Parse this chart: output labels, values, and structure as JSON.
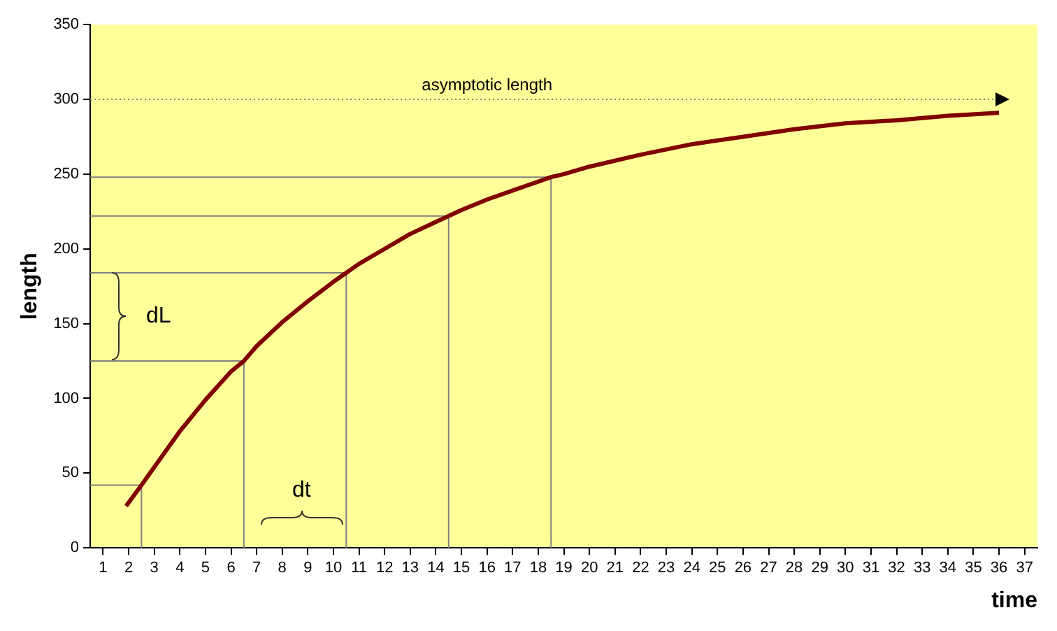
{
  "chart_data": {
    "type": "line",
    "xlabel": "time",
    "ylabel": "length",
    "xlim": [
      0.5,
      37.5
    ],
    "xticks": [
      1,
      2,
      3,
      4,
      5,
      6,
      7,
      8,
      9,
      10,
      11,
      12,
      13,
      14,
      15,
      16,
      17,
      18,
      19,
      20,
      21,
      22,
      23,
      24,
      25,
      26,
      27,
      28,
      29,
      30,
      31,
      32,
      33,
      34,
      35,
      36,
      37
    ],
    "ylim": [
      0,
      350
    ],
    "yticks": [
      0,
      50,
      100,
      150,
      200,
      250,
      300,
      350
    ],
    "grid": false,
    "legend": false,
    "marker": "none",
    "line_style": "solid",
    "series": [
      {
        "color": "#800000",
        "x": [
          1.9,
          2.5,
          3,
          4,
          5,
          6,
          6.5,
          7,
          8,
          9,
          10,
          10.5,
          11,
          12,
          13,
          14,
          14.5,
          15,
          16,
          17,
          18,
          18.5,
          19,
          20,
          22,
          24,
          26,
          28,
          30,
          32,
          34,
          36
        ],
        "values": [
          28,
          42,
          54,
          78,
          99,
          118,
          125,
          135,
          151,
          165,
          178,
          184,
          190,
          200,
          210,
          218,
          222,
          226,
          233,
          239,
          245,
          248,
          250,
          255,
          263,
          270,
          275,
          280,
          284,
          286,
          289,
          291
        ]
      },
      {
        "color": "#808080",
        "x": [
          0.5,
          2.5,
          2.5
        ],
        "values": [
          42,
          42,
          0
        ]
      },
      {
        "color": "#808080",
        "x": [
          0.5,
          6.5,
          6.5
        ],
        "values": [
          125,
          125,
          0
        ]
      },
      {
        "color": "#808080",
        "x": [
          0.5,
          10.5,
          10.5
        ],
        "values": [
          184,
          184,
          0
        ]
      },
      {
        "color": "#808080",
        "x": [
          0.5,
          14.5,
          14.5
        ],
        "values": [
          222,
          222,
          0
        ]
      },
      {
        "color": "#808080",
        "x": [
          0.5,
          18.5,
          18.5
        ],
        "values": [
          248,
          248,
          0
        ]
      }
    ],
    "ref_lines": [
      {
        "axis": "y",
        "value": 300,
        "label": "asymptotic length",
        "line_style": "dotted",
        "color": "#808080"
      }
    ],
    "annotations": [
      "dL",
      "dt"
    ]
  }
}
